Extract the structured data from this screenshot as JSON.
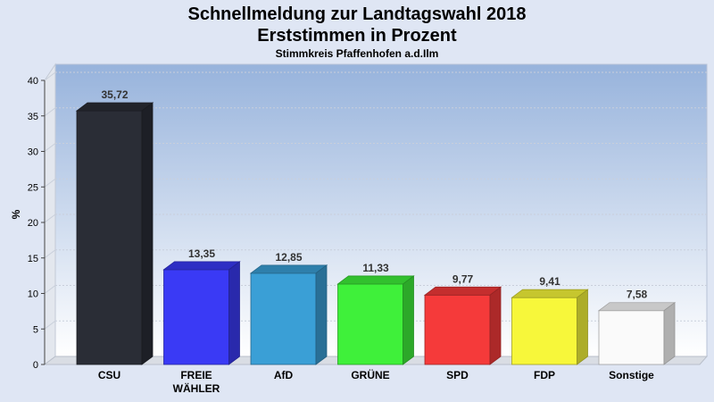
{
  "header": {
    "title_line1": "Schnellmeldung zur Landtagswahl 2018",
    "title_line2": "Erststimmen in Prozent",
    "subtitle": "Stimmkreis Pfaffenhofen a.d.Ilm"
  },
  "chart_data": {
    "type": "bar",
    "title": "Schnellmeldung zur Landtagswahl 2018 Erststimmen in Prozent",
    "subtitle": "Stimmkreis Pfaffenhofen a.d.Ilm",
    "xlabel": "",
    "ylabel": "%",
    "ylim": [
      0,
      40
    ],
    "yticks": [
      0,
      5,
      10,
      15,
      20,
      25,
      30,
      35,
      40
    ],
    "grid": true,
    "categories": [
      "CSU",
      "FREIE\nWÄHLER",
      "AfD",
      "GRÜNE",
      "SPD",
      "FDP",
      "Sonstige"
    ],
    "values": [
      35.72,
      13.35,
      12.85,
      11.33,
      9.77,
      9.41,
      7.58
    ],
    "value_labels": [
      "35,72",
      "13,35",
      "12,85",
      "11,33",
      "9,77",
      "9,41",
      "7,58"
    ],
    "colors": [
      "#2a2d36",
      "#3a3af5",
      "#3a9fd6",
      "#3ff03a",
      "#f53a3a",
      "#f7f73a",
      "#fafafa"
    ]
  }
}
